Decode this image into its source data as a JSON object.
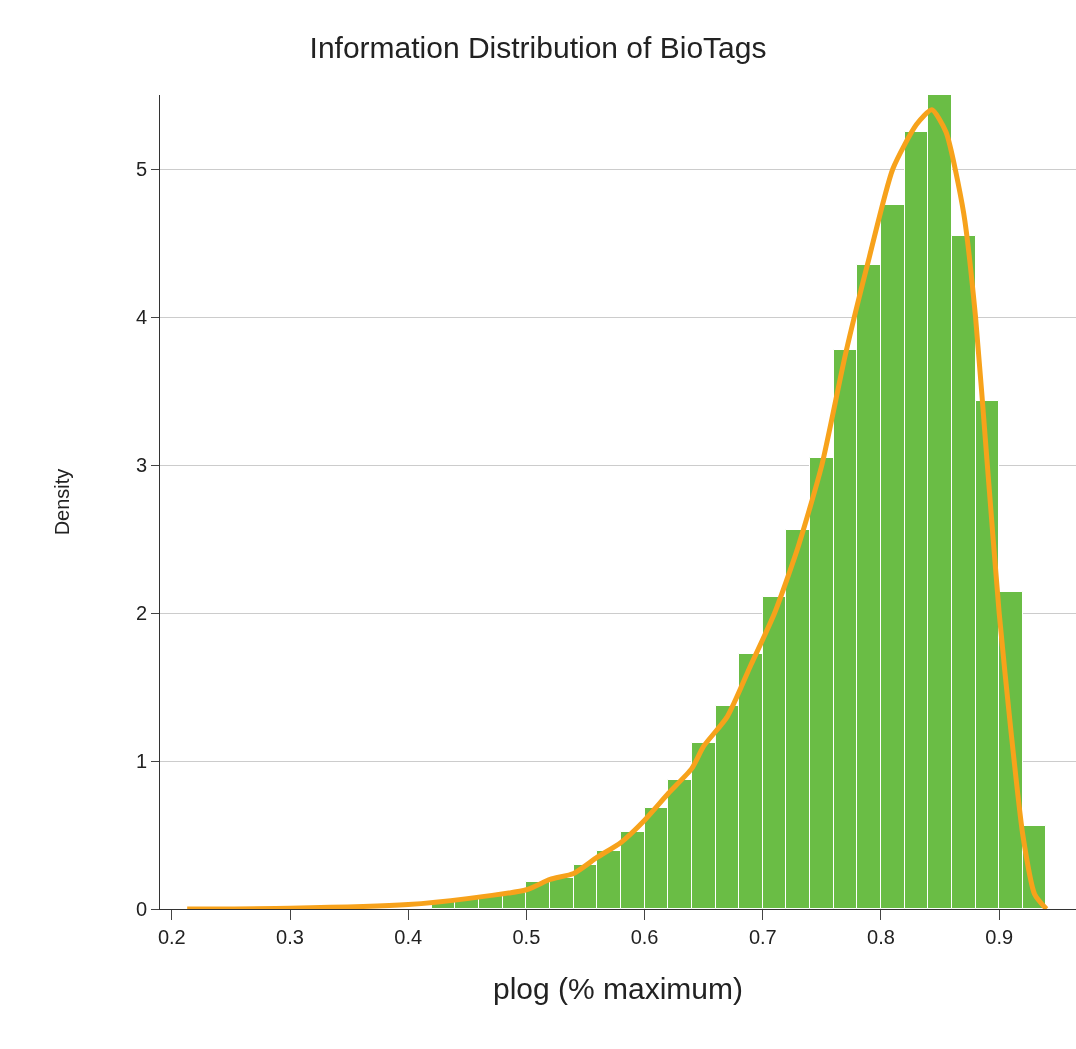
{
  "chart_data": {
    "type": "histogram",
    "title": "Information Distribution of BioTags",
    "xlabel": "plog (% maximum)",
    "ylabel": "Density",
    "bins": [
      0.22,
      0.24,
      0.26,
      0.28,
      0.3,
      0.32,
      0.34,
      0.36,
      0.38,
      0.4,
      0.42,
      0.44,
      0.46,
      0.48,
      0.5,
      0.52,
      0.54,
      0.56,
      0.58,
      0.6,
      0.62,
      0.64,
      0.66,
      0.68,
      0.7,
      0.72,
      0.74,
      0.76,
      0.78,
      0.8,
      0.82,
      0.84,
      0.86,
      0.88,
      0.9,
      0.92,
      0.94
    ],
    "values": [
      null,
      null,
      null,
      null,
      null,
      null,
      null,
      null,
      null,
      null,
      0.05,
      0.07,
      0.09,
      0.11,
      0.18,
      0.21,
      0.3,
      0.39,
      0.52,
      0.68,
      0.87,
      1.12,
      1.37,
      1.72,
      2.11,
      2.56,
      3.05,
      3.78,
      4.35,
      4.76,
      5.25,
      5.5,
      4.55,
      3.43,
      2.14,
      0.56
    ],
    "color": "#6abd45",
    "series": [
      {
        "type": "line",
        "color": "#f7a21b",
        "x": [
          0.213,
          0.3,
          0.4,
          0.45,
          0.5,
          0.52,
          0.54,
          0.56,
          0.58,
          0.6,
          0.62,
          0.64,
          0.65,
          0.67,
          0.69,
          0.71,
          0.73,
          0.75,
          0.77,
          0.79,
          0.81,
          0.83,
          0.843,
          0.855,
          0.87,
          0.88,
          0.89,
          0.9,
          0.91,
          0.92,
          0.93,
          0.94
        ],
        "values": [
          0,
          0.005,
          0.03,
          0.07,
          0.13,
          0.2,
          0.24,
          0.35,
          0.45,
          0.6,
          0.78,
          0.95,
          1.1,
          1.3,
          1.65,
          2.0,
          2.45,
          3.0,
          3.75,
          4.4,
          5.0,
          5.3,
          5.4,
          5.25,
          4.7,
          4.0,
          3.0,
          2.0,
          1.2,
          0.5,
          0.1,
          0
        ]
      }
    ],
    "xlim": [
      0.19,
      0.965
    ],
    "xticks": [
      0.2,
      0.3,
      0.4,
      0.5,
      0.6,
      0.7,
      0.8,
      0.9
    ],
    "ylim": [
      0,
      5.5
    ],
    "yticks": [
      0,
      1,
      2,
      3,
      4,
      5
    ],
    "grid": "y"
  }
}
